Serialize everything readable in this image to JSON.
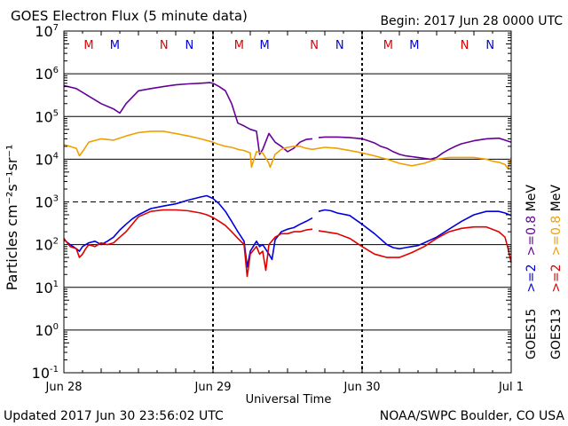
{
  "title": "GOES Electron Flux (5 minute data)",
  "begin": "Begin: 2017 Jun 28 0000 UTC",
  "updated": "Updated 2017 Jun 30 23:56:02 UTC",
  "credit": "NOAA/SWPC Boulder, CO USA",
  "chart_data": {
    "type": "line",
    "xlabel": "Universal Time",
    "ylabel": "Particles cm⁻²s⁻¹sr⁻¹",
    "x_unit": "hours since 2017 Jun 28 0000 UTC",
    "xlim": [
      0,
      72
    ],
    "x_ticks": [
      {
        "x": 0,
        "label": "Jun 28"
      },
      {
        "x": 24,
        "label": "Jun 29"
      },
      {
        "x": 48,
        "label": "Jun 30"
      },
      {
        "x": 72,
        "label": "Jul 1"
      }
    ],
    "y_scale": "log",
    "ylim_exp": [
      -1,
      7
    ],
    "y_ticks": [
      {
        "exp": 7,
        "base": "10",
        "sup": "7"
      },
      {
        "exp": 6,
        "base": "10",
        "sup": "6"
      },
      {
        "exp": 5,
        "base": "10",
        "sup": "5"
      },
      {
        "exp": 4,
        "base": "10",
        "sup": "4"
      },
      {
        "exp": 3,
        "base": "10",
        "sup": "3"
      },
      {
        "exp": 2,
        "base": "10",
        "sup": "2"
      },
      {
        "exp": 1,
        "base": "10",
        "sup": "1"
      },
      {
        "exp": 0,
        "base": "10",
        "sup": "0"
      },
      {
        "exp": -1,
        "base": "10",
        "sup": "-1"
      }
    ],
    "threshold_exp": 3,
    "markers": [
      {
        "x": 4,
        "label": "M",
        "color": "#e00000"
      },
      {
        "x": 8.2,
        "label": "M",
        "color": "#0000e0"
      },
      {
        "x": 16.1,
        "label": "N",
        "color": "#e00000"
      },
      {
        "x": 20.2,
        "label": "N",
        "color": "#0000e0"
      },
      {
        "x": 28.2,
        "label": "M",
        "color": "#e00000"
      },
      {
        "x": 32.3,
        "label": "M",
        "color": "#0000e0"
      },
      {
        "x": 40.3,
        "label": "N",
        "color": "#e00000"
      },
      {
        "x": 44.4,
        "label": "N",
        "color": "#0000e0"
      },
      {
        "x": 52.2,
        "label": "M",
        "color": "#e00000"
      },
      {
        "x": 56.4,
        "label": "M",
        "color": "#0000e0"
      },
      {
        "x": 64.5,
        "label": "N",
        "color": "#e00000"
      },
      {
        "x": 68.6,
        "label": "N",
        "color": "#0000e0"
      }
    ],
    "legend_placement": "right",
    "legend": [
      {
        "prefix": "GOES15",
        "band1": ">=2",
        "band1_color": "#0000e0",
        "band2": ">=0.8",
        "band2_color": "#660099",
        "unit": "MeV"
      },
      {
        "prefix": "GOES13",
        "band1": ">=2",
        "band1_color": "#e00000",
        "band2": ">=0.8",
        "band2_color": "#f0a000",
        "unit": "MeV"
      }
    ],
    "series": [
      {
        "key": "g15_08",
        "color": "#660099",
        "x": [
          0,
          2,
          4,
          6,
          8,
          9,
          10,
          12,
          14,
          16,
          18,
          20,
          22,
          23.5,
          24,
          25,
          26,
          27,
          28,
          29,
          30,
          31,
          31.5,
          32,
          33,
          34,
          35,
          36,
          37,
          38,
          39,
          40,
          40.2,
          41,
          42,
          44,
          46,
          47,
          48,
          49,
          50,
          51,
          52,
          53,
          54,
          55,
          56,
          57,
          58,
          59,
          60,
          61,
          62,
          63,
          64,
          66,
          68,
          70,
          71,
          72
        ],
        "y": [
          530000.0,
          450000.0,
          300000.0,
          200000.0,
          150000.0,
          120000.0,
          200000.0,
          400000.0,
          450000.0,
          500000.0,
          550000.0,
          580000.0,
          600000.0,
          620000.0,
          600000.0,
          500000.0,
          400000.0,
          200000.0,
          70000.0,
          60000.0,
          50000.0,
          45000.0,
          13000.0,
          17000.0,
          40000.0,
          25000.0,
          20000.0,
          15000.0,
          18000.0,
          25000.0,
          29000.0,
          30000.0,
          null,
          32000.0,
          33000.0,
          33000.0,
          32000.0,
          31000.0,
          30000.0,
          27000.0,
          24000.0,
          20000.0,
          18000.0,
          15000.0,
          13000.0,
          12000.0,
          11500.0,
          11000.0,
          10500.0,
          10000.0,
          11000.0,
          14000.0,
          17000.0,
          20000.0,
          23000.0,
          27000.0,
          30000.0,
          31000.0,
          28000.0,
          25000.0
        ]
      },
      {
        "key": "g13_08",
        "color": "#f0a000",
        "x": [
          0,
          2,
          2.5,
          3,
          4,
          6,
          8,
          10,
          12,
          14,
          16,
          18,
          20,
          22,
          24,
          25,
          26,
          27,
          28,
          29,
          30,
          30.2,
          30.5,
          31,
          32,
          33,
          33.2,
          34,
          35,
          36,
          37,
          38,
          39,
          40,
          42,
          44,
          46,
          48,
          50,
          52,
          54,
          56,
          58,
          59,
          60,
          62,
          64,
          66,
          68,
          69,
          70,
          71,
          71.5,
          72
        ],
        "y": [
          22000.0,
          18000.0,
          12000.0,
          15000.0,
          25000.0,
          30000.0,
          28000.0,
          35000.0,
          42000.0,
          45000.0,
          45000.0,
          40000.0,
          35000.0,
          30000.0,
          25000.0,
          22000.0,
          20000.0,
          19000.0,
          17000.0,
          16000.0,
          14000.0,
          6500.0,
          9000.0,
          15000.0,
          14000.0,
          8000.0,
          6500.0,
          13000.0,
          17000.0,
          19000.0,
          20000.0,
          20000.0,
          18000.0,
          17000.0,
          19000.0,
          18000.0,
          16000.0,
          14000.0,
          12000.0,
          10000.0,
          8000.0,
          7000.0,
          8000.0,
          9000.0,
          10000.0,
          11000.0,
          11000.0,
          11000.0,
          10000.0,
          9000.0,
          8500.0,
          7500.0,
          6000.0,
          11000.0
        ]
      },
      {
        "key": "g15_2",
        "color": "#0000e0",
        "x": [
          0,
          1,
          2,
          2.5,
          3,
          4,
          5,
          6,
          7,
          8,
          9,
          10,
          11,
          12,
          14,
          16,
          18,
          20,
          22,
          23,
          24,
          25,
          26,
          27,
          28,
          29,
          29.5,
          30,
          31,
          31.5,
          32,
          33,
          33.5,
          34,
          35,
          36,
          37,
          38,
          39,
          40,
          40.2,
          41,
          42,
          43,
          44,
          46,
          48,
          50,
          52,
          53,
          54,
          55,
          56,
          57,
          58,
          60,
          62,
          64,
          66,
          68,
          70,
          71,
          72
        ],
        "y": [
          130,
          100,
          80,
          70,
          90,
          110,
          120,
          100,
          120,
          150,
          220,
          300,
          400,
          500,
          700,
          800,
          900,
          1100,
          1300,
          1400,
          1200,
          900,
          600,
          350,
          200,
          120,
          30,
          70,
          120,
          90,
          100,
          60,
          45,
          130,
          200,
          230,
          250,
          300,
          350,
          420,
          null,
          600,
          650,
          620,
          550,
          480,
          300,
          180,
          100,
          85,
          80,
          85,
          90,
          95,
          110,
          150,
          230,
          350,
          500,
          600,
          600,
          550,
          480
        ]
      },
      {
        "key": "g13_2",
        "color": "#e00000",
        "x": [
          0,
          1,
          2,
          2.5,
          3,
          3.5,
          4,
          5,
          6,
          7,
          8,
          9,
          10,
          11,
          12,
          14,
          16,
          18,
          20,
          22,
          23,
          24,
          25,
          26,
          27,
          28,
          29,
          29.5,
          30,
          31,
          31.5,
          32,
          32.5,
          33,
          34,
          35,
          36,
          37,
          38,
          39,
          40,
          40.2,
          41,
          42,
          44,
          46,
          48,
          50,
          52,
          54,
          56,
          58,
          60,
          62,
          64,
          66,
          68,
          70,
          71,
          71.5,
          72
        ],
        "y": [
          140,
          90,
          80,
          50,
          60,
          80,
          100,
          90,
          110,
          100,
          110,
          150,
          200,
          300,
          450,
          600,
          650,
          650,
          620,
          550,
          500,
          430,
          350,
          280,
          200,
          140,
          100,
          18,
          60,
          90,
          60,
          70,
          25,
          100,
          150,
          180,
          180,
          200,
          200,
          220,
          230,
          null,
          210,
          200,
          180,
          140,
          90,
          60,
          50,
          50,
          65,
          90,
          140,
          200,
          240,
          260,
          260,
          200,
          150,
          80,
          38
        ]
      }
    ]
  }
}
